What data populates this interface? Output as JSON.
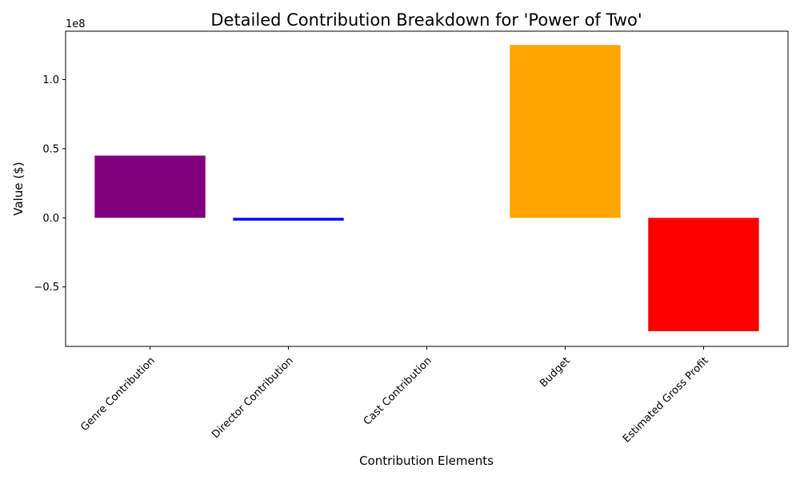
{
  "chart_data": {
    "type": "bar",
    "title": "Detailed Contribution Breakdown for 'Power of Two'",
    "xlabel": "Contribution Elements",
    "ylabel": "Value ($)",
    "categories": [
      "Genre Contribution",
      "Director Contribution",
      "Cast Contribution",
      "Budget",
      "Estimated Gross Profit"
    ],
    "values": [
      45000000,
      -2000000,
      0,
      125000000,
      -82000000
    ],
    "colors": [
      "#800080",
      "#0000ff",
      "#008000",
      "#ffa500",
      "#ff0000"
    ],
    "ylim": [
      -93000000,
      135000000
    ],
    "y_ticks": [
      -50000000,
      0,
      50000000,
      100000000
    ],
    "y_tick_labels": [
      "−0.5",
      "0.0",
      "0.5",
      "1.0"
    ],
    "y_offset_label": "1e8",
    "grid": false
  }
}
